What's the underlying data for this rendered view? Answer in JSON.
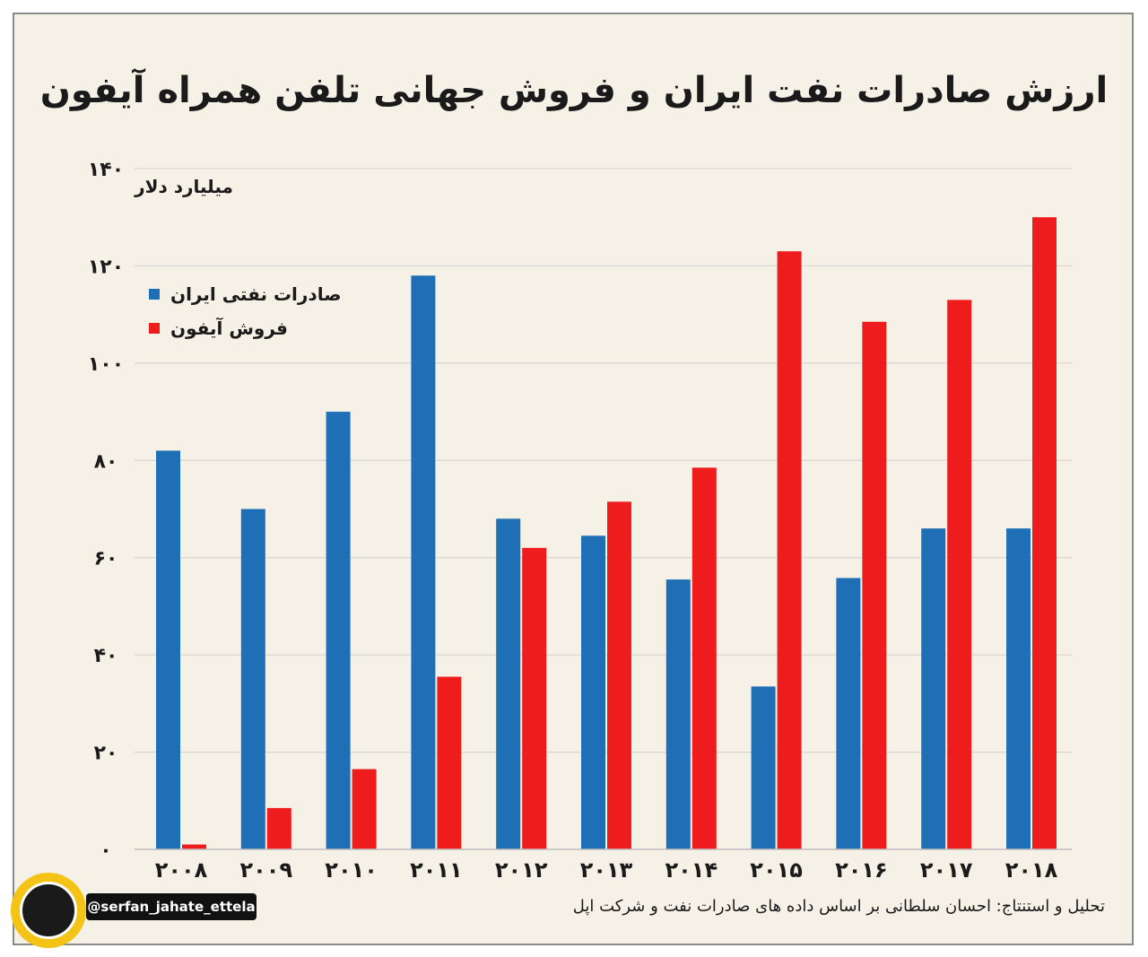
{
  "title": "ارزش صادرات نفت ایران و فروش جهانی تلفن همراه آیفون",
  "unit_label": "میلیارد دلار",
  "legend": [
    {
      "label": "صادرات نفتی ایران",
      "color": "#1f6fb7"
    },
    {
      "label": "فروش آیفون",
      "color": "#ee1c1c"
    }
  ],
  "credit": "تحلیل و استنتاج: احسان سلطانی بر اساس داده های صادرات نفت و شرکت اپل",
  "handle": "@serfan_jahate_ettela",
  "chart_data": {
    "type": "bar",
    "title": "ارزش صادرات نفت ایران و فروش جهانی تلفن همراه آیفون",
    "ylabel": "میلیارد دلار",
    "ylim": [
      0,
      140
    ],
    "yticks": [
      0,
      20,
      40,
      60,
      80,
      100,
      120,
      140
    ],
    "ytick_labels": [
      "۰",
      "۲۰",
      "۴۰",
      "۶۰",
      "۸۰",
      "۱۰۰",
      "۱۲۰",
      "۱۴۰"
    ],
    "categories": [
      "۲۰۰۸",
      "۲۰۰۹",
      "۲۰۱۰",
      "۲۰۱۱",
      "۲۰۱۲",
      "۲۰۱۳",
      "۲۰۱۴",
      "۲۰۱۵",
      "۲۰۱۶",
      "۲۰۱۷",
      "۲۰۱۸"
    ],
    "grid": true,
    "legend_position": "top-left",
    "series": [
      {
        "name": "صادرات نفتی ایران",
        "color": "#1f6fb7",
        "values": [
          82,
          70,
          90,
          118,
          68,
          64.5,
          55.5,
          33.5,
          55.8,
          66,
          66
        ]
      },
      {
        "name": "فروش آیفون",
        "color": "#ee1c1c",
        "values": [
          1,
          8.5,
          16.5,
          35.5,
          62,
          71.5,
          78.5,
          123,
          108.5,
          113,
          130
        ]
      }
    ]
  }
}
